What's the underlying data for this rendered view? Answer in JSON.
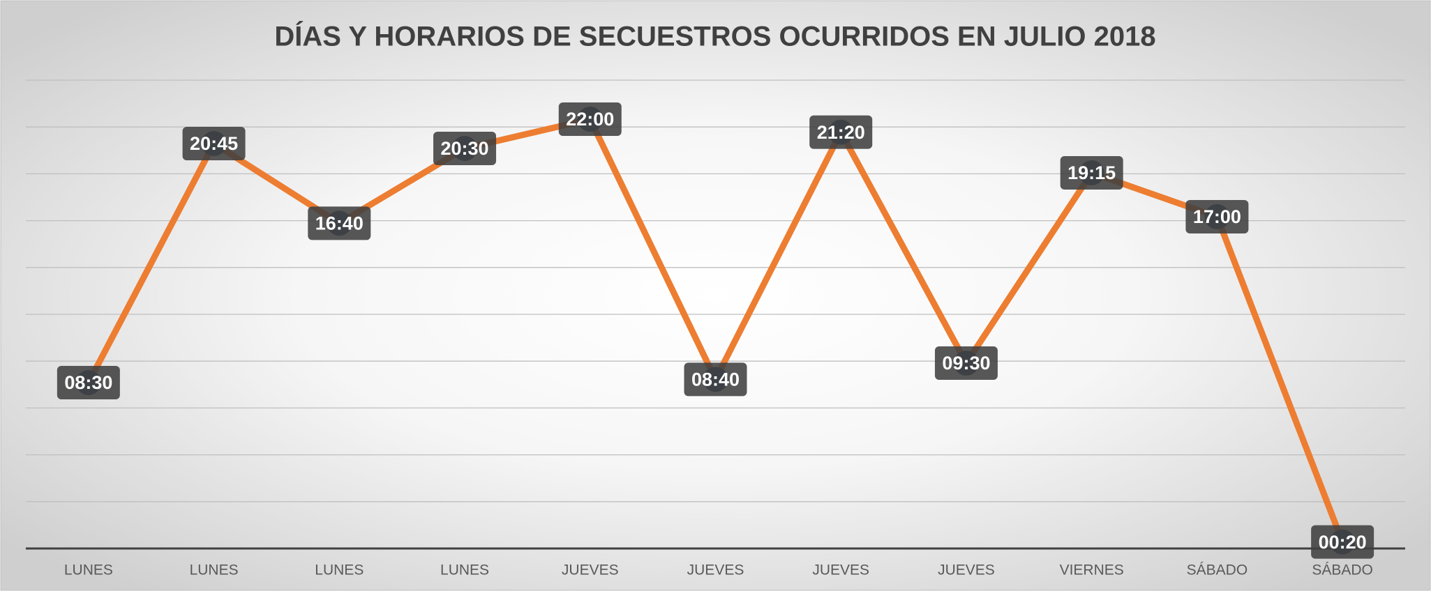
{
  "chart_data": {
    "type": "line",
    "title": "DÍAS Y HORARIOS DE SECUESTROS OCURRIDOS EN JULIO 2018",
    "categories": [
      "LUNES",
      "LUNES",
      "LUNES",
      "LUNES",
      "JUEVES",
      "JUEVES",
      "JUEVES",
      "JUEVES",
      "VIERNES",
      "SÁBADO",
      "SÁBADO"
    ],
    "values": [
      8.5,
      20.75,
      16.6667,
      20.5,
      22,
      8.6667,
      21.3333,
      9.5,
      19.25,
      17,
      0.3333
    ],
    "value_labels": [
      "08:30",
      "20:45",
      "16:40",
      "20:30",
      "22:00",
      "08:40",
      "21:20",
      "09:30",
      "19:15",
      "17:00",
      "00:20"
    ],
    "color": "#ed7d31",
    "marker_color": "#2d4a6b",
    "ylim": [
      0,
      24
    ],
    "yticks": [
      0,
      2.4,
      4.8,
      7.2,
      9.6,
      12,
      14.4,
      16.8,
      19.2,
      21.6,
      24
    ],
    "grid": true
  }
}
